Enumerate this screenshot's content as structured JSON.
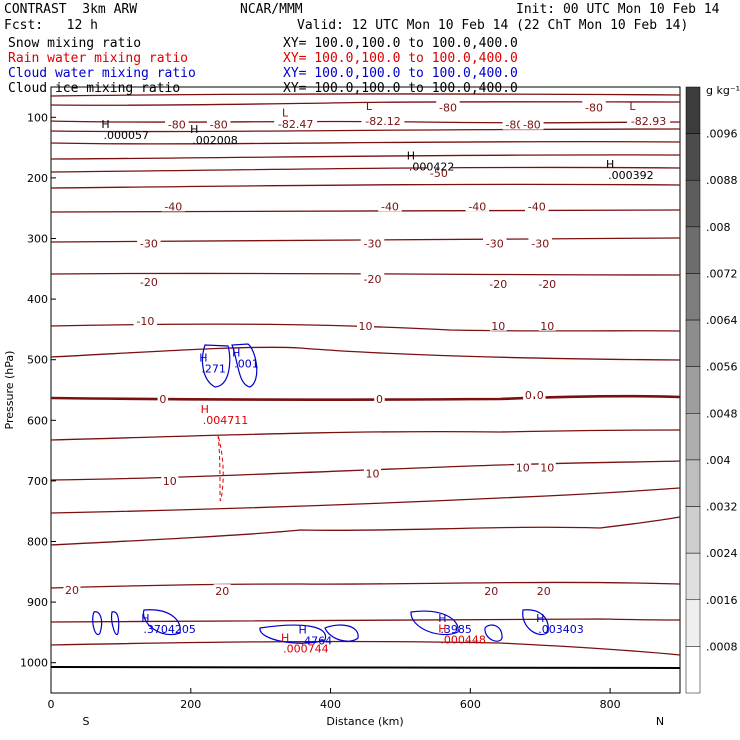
{
  "header": {
    "model": "CONTRAST  3km ARW",
    "org": "NCAR/MMM",
    "init": "Init: 00 UTC Mon 10 Feb 14",
    "fcst": "Fcst:   12 h",
    "valid": "Valid: 12 UTC Mon 10 Feb 14 (22 ChT Mon 10 Feb 14)",
    "fields": [
      {
        "label": "Snow mixing ratio",
        "xy": "XY= 100.0,100.0 to 100.0,400.0",
        "color": "#000000"
      },
      {
        "label": "Rain water mixing ratio",
        "xy": "XY= 100.0,100.0 to 100.0,400.0",
        "color": "#dd0000"
      },
      {
        "label": "Cloud water mixing ratio",
        "xy": "XY= 100.0,100.0 to 100.0,400.0",
        "color": "#0000cc"
      },
      {
        "label": "Cloud ice mixing ratio",
        "xy": "XY= 100.0,100.0 to 100.0,400.0",
        "color": "#000000"
      }
    ]
  },
  "chart_data": {
    "type": "contour",
    "xlabel": "Distance (km)",
    "ylabel": "Pressure (hPa)",
    "xlim": [
      0,
      900
    ],
    "ylim": [
      1050,
      50
    ],
    "x_ticks": [
      0,
      200,
      400,
      600,
      800
    ],
    "y_ticks": [
      100,
      200,
      300,
      400,
      500,
      600,
      700,
      800,
      900,
      1000
    ],
    "x_end_labels": {
      "left": "S",
      "right": "N"
    },
    "colorbar": {
      "unit": "g kg⁻¹",
      "labels": [
        ".0096",
        ".0088",
        ".008",
        ".0072",
        ".0064",
        ".0056",
        ".0048",
        ".004",
        ".0032",
        ".0024",
        ".0016",
        ".0008"
      ]
    },
    "temperature_labels": [
      {
        "text": "-80",
        "x": 180,
        "p": 112
      },
      {
        "text": "-80",
        "x": 240,
        "p": 112
      },
      {
        "text": "-82.47",
        "x": 350,
        "p": 111
      },
      {
        "text": "-82.12",
        "x": 475,
        "p": 106
      },
      {
        "text": "-80",
        "x": 568,
        "p": 84
      },
      {
        "text": "-80",
        "x": 663,
        "p": 112
      },
      {
        "text": "-80",
        "x": 688,
        "p": 112
      },
      {
        "text": "-80",
        "x": 777,
        "p": 84
      },
      {
        "text": "-82.93",
        "x": 855,
        "p": 106
      },
      {
        "text": "-50",
        "x": 555,
        "p": 192
      },
      {
        "text": "-40",
        "x": 175,
        "p": 247
      },
      {
        "text": "-40",
        "x": 485,
        "p": 247
      },
      {
        "text": "-40",
        "x": 610,
        "p": 247
      },
      {
        "text": "-40",
        "x": 695,
        "p": 247
      },
      {
        "text": "-30",
        "x": 140,
        "p": 308
      },
      {
        "text": "-30",
        "x": 460,
        "p": 308
      },
      {
        "text": "-30",
        "x": 635,
        "p": 308
      },
      {
        "text": "-30",
        "x": 700,
        "p": 308
      },
      {
        "text": "-20",
        "x": 140,
        "p": 372
      },
      {
        "text": "-20",
        "x": 460,
        "p": 367
      },
      {
        "text": "-20",
        "x": 640,
        "p": 375
      },
      {
        "text": "-20",
        "x": 710,
        "p": 375
      },
      {
        "text": "-10",
        "x": 135,
        "p": 436
      },
      {
        "text": "10",
        "x": 450,
        "p": 444
      },
      {
        "text": "10",
        "x": 640,
        "p": 444
      },
      {
        "text": "10",
        "x": 710,
        "p": 444
      },
      {
        "text": "0",
        "x": 160,
        "p": 565
      },
      {
        "text": "0",
        "x": 470,
        "p": 565
      },
      {
        "text": "0",
        "x": 683,
        "p": 558
      },
      {
        "text": "0",
        "x": 700,
        "p": 558
      },
      {
        "text": "10",
        "x": 170,
        "p": 700
      },
      {
        "text": "10",
        "x": 460,
        "p": 688
      },
      {
        "text": "10",
        "x": 675,
        "p": 678
      },
      {
        "text": "10",
        "x": 710,
        "p": 678
      },
      {
        "text": "20",
        "x": 30,
        "p": 880
      },
      {
        "text": "20",
        "x": 245,
        "p": 882
      },
      {
        "text": "20",
        "x": 630,
        "p": 882
      },
      {
        "text": "20",
        "x": 705,
        "p": 882
      }
    ],
    "extrema": [
      {
        "kind": "L",
        "x": 335,
        "p": 99,
        "value": "-82.47",
        "color": "#7a1010"
      },
      {
        "kind": "L",
        "x": 455,
        "p": 88,
        "value": "-82.12",
        "color": "#7a1010"
      },
      {
        "kind": "L",
        "x": 832,
        "p": 88,
        "value": "-82.93",
        "color": "#7a1010"
      },
      {
        "kind": "H",
        "x": 78,
        "p": 118,
        "value": ".000057",
        "color": "#000000"
      },
      {
        "kind": "H",
        "x": 205,
        "p": 126,
        "value": ".002008",
        "color": "#000000"
      },
      {
        "kind": "H",
        "x": 515,
        "p": 170,
        "value": ".000422",
        "color": "#000000"
      },
      {
        "kind": "H",
        "x": 800,
        "p": 184,
        "value": ".000392",
        "color": "#000000"
      },
      {
        "kind": "H",
        "x": 218,
        "p": 503,
        "value": ".271",
        "color": "#0000cc"
      },
      {
        "kind": "H",
        "x": 265,
        "p": 495,
        "value": ".001",
        "color": "#0000cc"
      },
      {
        "kind": "H",
        "x": 220,
        "p": 588,
        "value": ".004711",
        "color": "#dd0000"
      },
      {
        "kind": "H",
        "x": 135,
        "p": 933,
        "value": ".3704205",
        "color": "#0000cc"
      },
      {
        "kind": "H",
        "x": 360,
        "p": 952,
        "value": ".4764",
        "color": "#0000cc"
      },
      {
        "kind": "H",
        "x": 335,
        "p": 965,
        "value": ".000744",
        "color": "#dd0000"
      },
      {
        "kind": "H",
        "x": 560,
        "p": 933,
        "value": ".3985",
        "color": "#0000cc"
      },
      {
        "kind": "H",
        "x": 560,
        "p": 950,
        "value": ".000448",
        "color": "#dd0000"
      },
      {
        "kind": "H",
        "x": 700,
        "p": 933,
        "value": ".003403",
        "color": "#0000cc"
      }
    ]
  }
}
